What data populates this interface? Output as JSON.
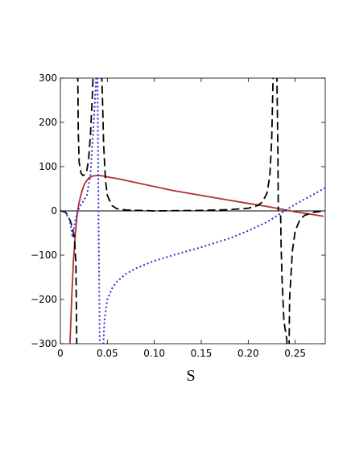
{
  "chart_data": {
    "type": "line",
    "xlabel": "S",
    "ylabel": "",
    "xlim": [
      0,
      0.282
    ],
    "ylim": [
      -300,
      300
    ],
    "x_ticks": [
      "0",
      "0.05",
      "0.10",
      "0.15",
      "0.20",
      "0.25"
    ],
    "y_ticks": [
      "−300",
      "−200",
      "−100",
      "0",
      "100",
      "200",
      "300"
    ],
    "x_tick_values": [
      0,
      0.05,
      0.1,
      0.15,
      0.2,
      0.25
    ],
    "y_tick_values": [
      -300,
      -200,
      -100,
      0,
      100,
      200,
      300
    ],
    "grid": false,
    "series": [
      {
        "style": "solid",
        "color": "#b03030",
        "x": [
          0.01,
          0.012,
          0.014,
          0.016,
          0.018,
          0.02,
          0.023,
          0.026,
          0.03,
          0.035,
          0.04,
          0.045,
          0.05,
          0.06,
          0.08,
          0.1,
          0.12,
          0.15,
          0.18,
          0.2,
          0.22,
          0.235,
          0.25,
          0.265,
          0.28
        ],
        "y": [
          -310,
          -200,
          -110,
          -50,
          -5,
          20,
          45,
          62,
          74,
          79,
          80,
          79,
          77,
          73,
          64,
          55,
          46,
          35,
          24,
          17,
          10,
          4,
          -2,
          -7,
          -12
        ]
      },
      {
        "style": "dashed",
        "color": "#000000",
        "x": [
          0.0,
          0.005,
          0.008,
          0.011,
          0.013,
          0.015,
          0.0165,
          0.0175,
          null,
          0.0185,
          0.019,
          0.02,
          0.022,
          0.024,
          0.026,
          0.028,
          0.03,
          0.032,
          0.034,
          0.035,
          null,
          0.044,
          0.045,
          0.046,
          0.048,
          0.05,
          0.055,
          0.06,
          0.07,
          0.1,
          0.15,
          0.18,
          0.2,
          0.21,
          0.215,
          0.22,
          0.223,
          0.225,
          0.2265,
          null,
          0.2305,
          0.2315,
          0.232,
          null,
          0.2345,
          0.235,
          0.236,
          0.238,
          0.241,
          0.2415,
          null,
          0.2435,
          0.244,
          0.247,
          0.25,
          0.255,
          0.26,
          0.27,
          0.282
        ],
        "y": [
          0,
          -2,
          -10,
          -25,
          -40,
          -60,
          -120,
          -310,
          null,
          310,
          180,
          110,
          85,
          80,
          82,
          90,
          115,
          170,
          260,
          310,
          null,
          310,
          240,
          150,
          70,
          35,
          12,
          5,
          2,
          0,
          1,
          3,
          6,
          12,
          20,
          40,
          80,
          160,
          310,
          null,
          310,
          150,
          0,
          null,
          -10,
          -80,
          -150,
          -250,
          -290,
          -310,
          null,
          -310,
          -200,
          -90,
          -45,
          -20,
          -10,
          -3,
          0
        ]
      },
      {
        "style": "dotted",
        "color": "#2b2bd6",
        "x": [
          0.0,
          0.005,
          0.01,
          0.013,
          0.016,
          0.02,
          0.024,
          0.028,
          0.032,
          0.035,
          0.037,
          0.0385,
          null,
          0.0395,
          0.0405,
          0.042,
          null,
          0.0455,
          0.047,
          0.05,
          0.055,
          0.06,
          0.07,
          0.08,
          0.1,
          0.12,
          0.15,
          0.18,
          0.2,
          0.22,
          0.235,
          0.25,
          0.265,
          0.282
        ],
        "y": [
          0,
          -3,
          -20,
          -60,
          -20,
          8,
          20,
          35,
          80,
          180,
          260,
          310,
          null,
          310,
          0,
          -310,
          null,
          -310,
          -245,
          -200,
          -175,
          -160,
          -142,
          -130,
          -113,
          -100,
          -82,
          -62,
          -45,
          -25,
          -5,
          15,
          32,
          52
        ]
      }
    ]
  }
}
